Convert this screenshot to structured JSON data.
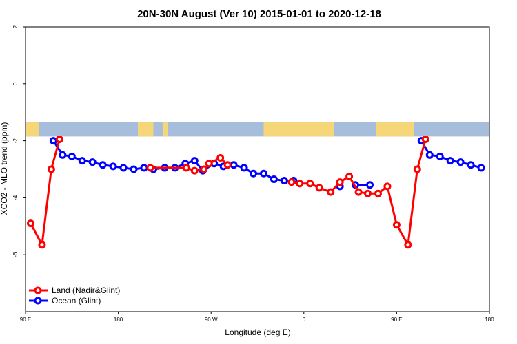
{
  "chart_data": {
    "type": "line",
    "title": "20N-30N August (Ver 10)   2015-01-01 to 2020-12-18",
    "xlabel": "Longitude (deg E)",
    "ylabel": "XCO2 - MLO trend (ppm)",
    "xlim": [
      90,
      540
    ],
    "ylim": [
      -8,
      2
    ],
    "x_ticks": [
      {
        "value": 90,
        "label": "90 E"
      },
      {
        "value": 180,
        "label": "180"
      },
      {
        "value": 270,
        "label": "90 W"
      },
      {
        "value": 360,
        "label": "0"
      },
      {
        "value": 450,
        "label": "90 E"
      },
      {
        "value": 540,
        "label": "180"
      }
    ],
    "y_ticks": [
      {
        "value": 2,
        "label": "2"
      },
      {
        "value": 0,
        "label": "0"
      },
      {
        "value": -2,
        "label": "-2"
      },
      {
        "value": -4,
        "label": "-4"
      },
      {
        "value": -6,
        "label": "-6"
      }
    ],
    "legend_position": "bottom-left",
    "map_band": {
      "y_top": -1.35,
      "y_bottom": -1.85,
      "ocean_color": "#a6bddb",
      "land_color": "#f5d77a"
    },
    "series": [
      {
        "name": "Land (Nadir&Glint)",
        "color": "#ff0000",
        "segments": [
          [
            [
              95,
              -4.9
            ],
            [
              106,
              -5.65
            ],
            [
              115,
              -3.0
            ],
            [
              123,
              -1.95
            ]
          ],
          [
            [
              211,
              -2.95
            ],
            [
              246,
              -2.95
            ],
            [
              254,
              -3.05
            ],
            [
              263,
              -3.0
            ],
            [
              268,
              -2.8
            ],
            [
              279,
              -2.6
            ],
            [
              286,
              -2.85
            ]
          ],
          [
            [
              348,
              -3.45
            ],
            [
              356,
              -3.5
            ],
            [
              366,
              -3.5
            ],
            [
              375,
              -3.65
            ],
            [
              386,
              -3.8
            ],
            [
              395,
              -3.45
            ],
            [
              404,
              -3.25
            ],
            [
              413,
              -3.8
            ],
            [
              422,
              -3.85
            ],
            [
              432,
              -3.85
            ],
            [
              441,
              -3.6
            ],
            [
              450,
              -4.95
            ],
            [
              461,
              -5.65
            ],
            [
              470,
              -3.0
            ],
            [
              478,
              -1.95
            ]
          ]
        ]
      },
      {
        "name": "Ocean (Glint)",
        "color": "#0000ff",
        "segments": [
          [
            [
              117,
              -2.0
            ],
            [
              126,
              -2.5
            ],
            [
              135,
              -2.55
            ],
            [
              145,
              -2.7
            ],
            [
              155,
              -2.75
            ],
            [
              165,
              -2.85
            ],
            [
              175,
              -2.9
            ],
            [
              185,
              -2.95
            ],
            [
              195,
              -3.0
            ],
            [
              205,
              -2.95
            ],
            [
              214,
              -3.0
            ],
            [
              225,
              -2.95
            ],
            [
              235,
              -2.95
            ],
            [
              245,
              -2.8
            ],
            [
              254,
              -2.7
            ],
            [
              262,
              -3.05
            ],
            [
              273,
              -2.8
            ],
            [
              282,
              -2.9
            ],
            [
              292,
              -2.85
            ],
            [
              302,
              -2.95
            ],
            [
              311,
              -3.15
            ],
            [
              321,
              -3.15
            ],
            [
              331,
              -3.35
            ],
            [
              341,
              -3.4
            ],
            [
              350,
              -3.4
            ]
          ],
          [
            [
              395,
              -3.6
            ]
          ],
          [
            [
              410,
              -3.55
            ],
            [
              424,
              -3.55
            ]
          ],
          [
            [
              474,
              -2.0
            ],
            [
              482,
              -2.5
            ],
            [
              492,
              -2.55
            ],
            [
              502,
              -2.7
            ],
            [
              512,
              -2.75
            ],
            [
              522,
              -2.85
            ],
            [
              532,
              -2.95
            ]
          ]
        ]
      }
    ]
  }
}
